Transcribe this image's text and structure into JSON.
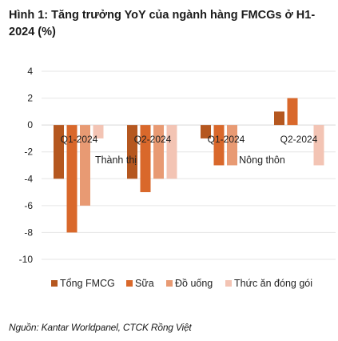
{
  "title": "Hình 1: Tăng trưởng YoY của ngành hàng FMCGs ở H1-2024 (%)",
  "source": "Nguồn: Kantar Worldpanel, CTCK Rồng Việt",
  "chart_data": {
    "type": "bar",
    "categories": [
      "Q1-2024",
      "Q2-2024",
      "Q1-2024",
      "Q2-2024"
    ],
    "groups": [
      {
        "label": "Thành thị",
        "categories": [
          0,
          1
        ]
      },
      {
        "label": "Nông thôn",
        "categories": [
          2,
          3
        ]
      }
    ],
    "series": [
      {
        "name": "Tổng FMCG",
        "color": "#b5571f",
        "values": [
          -4,
          -4,
          -1,
          1
        ]
      },
      {
        "name": "Sữa",
        "color": "#d9682b",
        "values": [
          -8,
          -5,
          -3,
          2
        ]
      },
      {
        "name": "Đồ uống",
        "color": "#e89a73",
        "values": [
          -6,
          -4,
          -3,
          null
        ]
      },
      {
        "name": "Thức ăn đóng gói",
        "color": "#f3c4b4",
        "values": [
          -1,
          -4,
          null,
          -3
        ]
      }
    ],
    "yticks": [
      4,
      2,
      0,
      -2,
      -4,
      -6,
      -8,
      -10
    ],
    "ylim": [
      -10,
      4
    ],
    "grid": true,
    "legend": "bottom"
  }
}
